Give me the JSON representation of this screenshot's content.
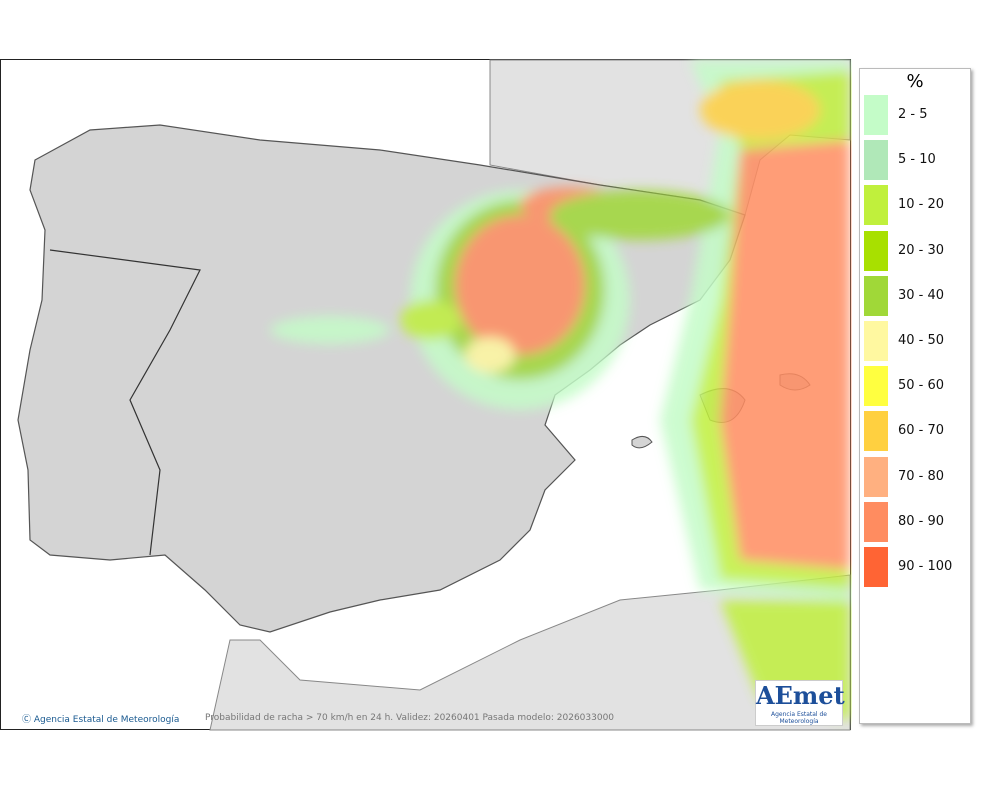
{
  "legend": {
    "title": "%",
    "items": [
      {
        "label": "2 - 5",
        "color": "#c4fcc8"
      },
      {
        "label": "5 - 10",
        "color": "#b0e8b8"
      },
      {
        "label": "10 - 20",
        "color": "#c0f03c"
      },
      {
        "label": "20 - 30",
        "color": "#a8e000"
      },
      {
        "label": "30 - 40",
        "color": "#a0d838"
      },
      {
        "label": "40 - 50",
        "color": "#fff8a0"
      },
      {
        "label": "50 - 60",
        "color": "#ffff40"
      },
      {
        "label": "60 - 70",
        "color": "#ffd040"
      },
      {
        "label": "70 - 80",
        "color": "#ffb080"
      },
      {
        "label": "80 - 90",
        "color": "#ff8c60"
      },
      {
        "label": "90 - 100",
        "color": "#ff6434"
      }
    ]
  },
  "footer": {
    "credit": "Agencia Estatal de Meteorología",
    "caption": "Probabilidad de racha > 70 km/h en 24 h. Validez: 20260401 Pasada modelo: 2026033000",
    "logo": "AEmet",
    "logo_subtitle": "Agencia Estatal de Meteorología"
  }
}
